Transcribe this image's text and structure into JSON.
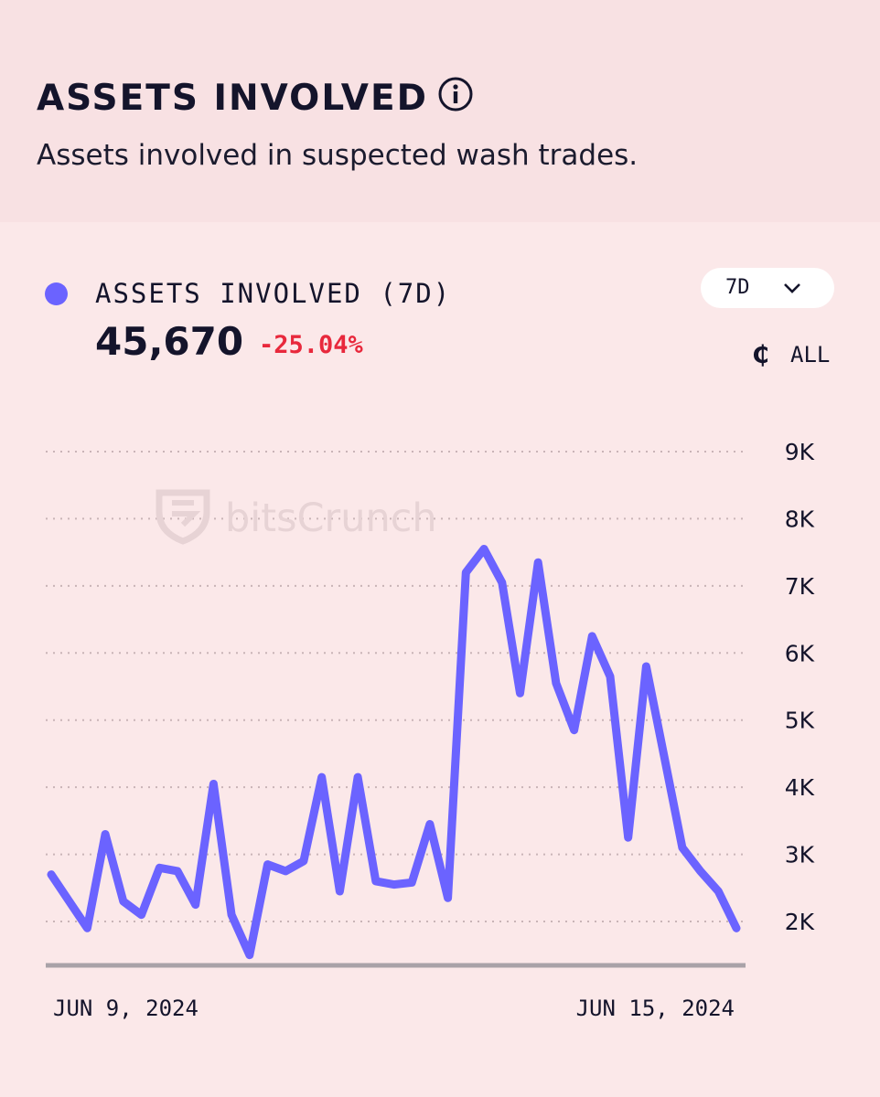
{
  "header": {
    "title": "ASSETS INVOLVED",
    "subtitle": "Assets involved in suspected wash trades."
  },
  "metric": {
    "label": "ASSETS INVOLVED (7D)",
    "value": "45,670",
    "change": "-25.04%",
    "change_color": "#e8283c",
    "series_color": "#6b63ff"
  },
  "controls": {
    "range": "7D",
    "currency_icon": "coin-icon",
    "currency_symbol": "₵",
    "currency": "ALL"
  },
  "watermark": "bitsCrunch",
  "chart_data": {
    "type": "line",
    "title": "",
    "xlabel": "",
    "ylabel": "",
    "x_tick_labels": [
      "JUN 9, 2024",
      "JUN 15, 2024"
    ],
    "y_ticks": [
      2000,
      3000,
      4000,
      5000,
      6000,
      7000,
      8000,
      9000
    ],
    "y_tick_labels": [
      "2K",
      "3K",
      "4K",
      "5K",
      "6K",
      "7K",
      "8K",
      "9K"
    ],
    "y_axis_position": "right",
    "ylim": [
      1350,
      9000
    ],
    "grid": "dotted horizontal",
    "legend": "top-left",
    "series": [
      {
        "values": [
          2700,
          2300,
          1900,
          3300,
          2300,
          2100,
          2800,
          2750,
          2250,
          4050,
          2100,
          1500,
          2850,
          2750,
          2900,
          4150,
          2450,
          4150,
          2600,
          2550,
          2580,
          3450,
          2350,
          7200,
          7550,
          7050,
          5400,
          7350,
          5550,
          4850,
          6250,
          5650,
          3250,
          5800,
          4450,
          3100,
          2750,
          2450,
          1900
        ]
      }
    ]
  }
}
